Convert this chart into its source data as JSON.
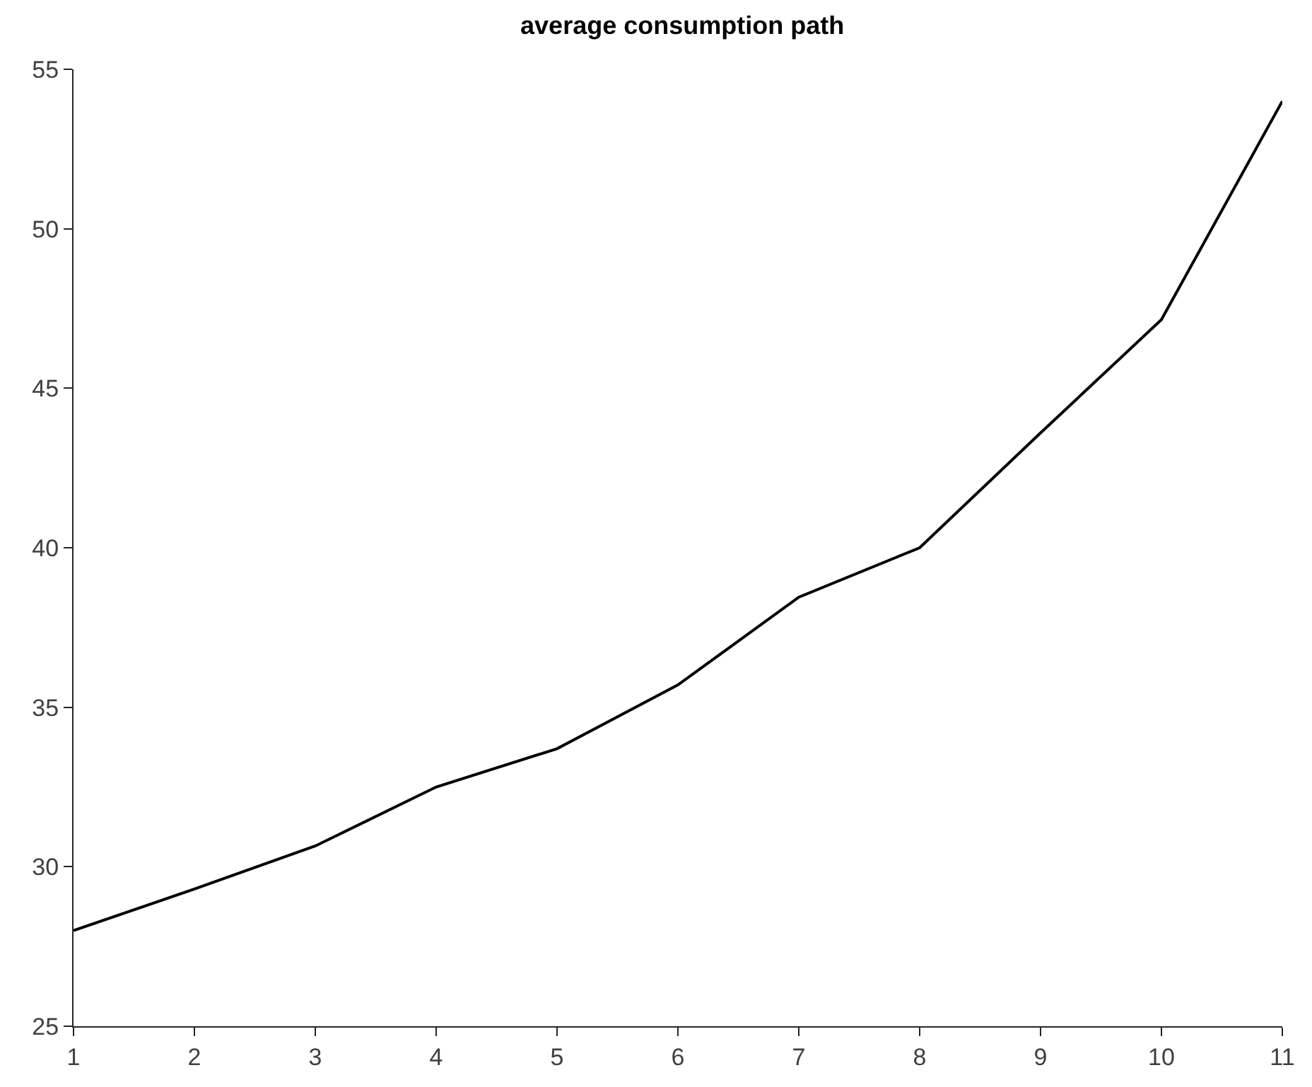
{
  "chart_data": {
    "type": "line",
    "title": "average consumption path",
    "x": [
      1,
      2,
      3,
      4,
      5,
      6,
      7,
      8,
      9,
      10,
      11
    ],
    "series": [
      {
        "color": "#000000",
        "values": [
          28,
          29.3,
          30.65,
          32.5,
          33.7,
          35.7,
          38.45,
          40,
          43.6,
          47.15,
          54
        ]
      }
    ],
    "xlim": [
      1,
      11
    ],
    "xticks": [
      1,
      2,
      3,
      4,
      5,
      6,
      7,
      8,
      9,
      10,
      11
    ],
    "ylim": [
      25,
      55
    ],
    "yticks": [
      25,
      30,
      35,
      40,
      45,
      50,
      55
    ],
    "line_style": "solid"
  }
}
